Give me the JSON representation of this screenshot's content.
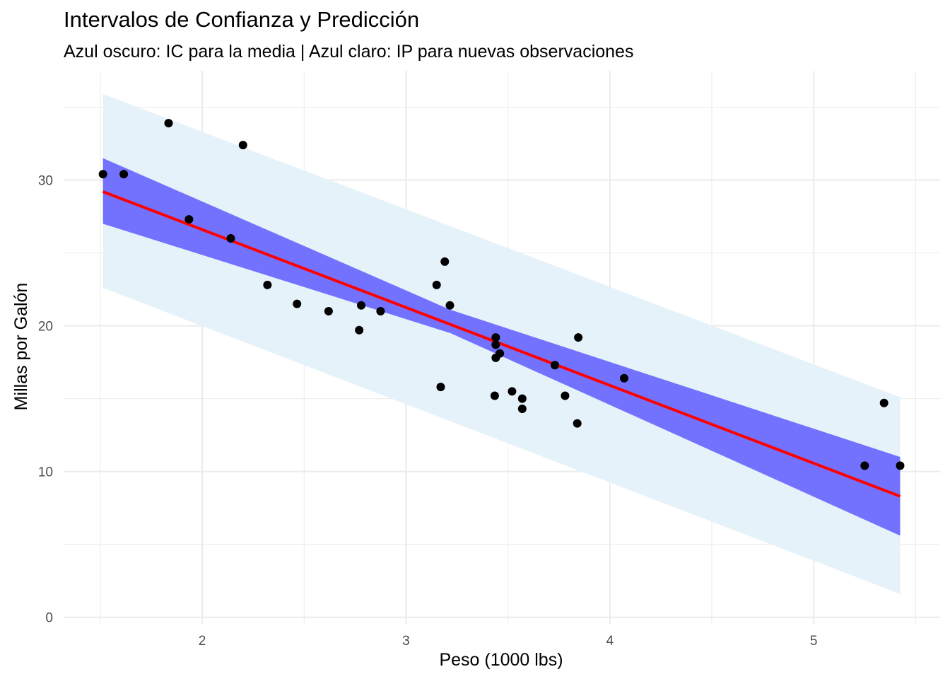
{
  "chart_data": {
    "type": "scatter",
    "title": "Intervalos de Confianza y Predicción",
    "subtitle": "Azul oscuro: IC para la media | Azul claro: IP para nuevas observaciones",
    "xlabel": "Peso (1000 lbs)",
    "ylabel": "Millas por Galón",
    "xlim": [
      1.32,
      5.62
    ],
    "ylim": [
      -0.5,
      37.5
    ],
    "x_ticks": [
      2,
      3,
      4,
      5
    ],
    "y_ticks": [
      0,
      10,
      20,
      30
    ],
    "x_tick_labels": [
      "2",
      "3",
      "4",
      "5"
    ],
    "y_tick_labels": [
      "0",
      "10",
      "20",
      "30"
    ],
    "grid": true,
    "legend": "none",
    "colors": {
      "points": "#000000",
      "fit_line": "#ff0000",
      "confidence_band": "#7272ff",
      "prediction_band": "#e6f2f9",
      "grid": "#ebebeb"
    },
    "fit_line": {
      "x": [
        1.513,
        5.424
      ],
      "y": [
        29.2,
        8.3
      ]
    },
    "confidence_band": {
      "x": [
        1.513,
        3.217,
        5.424
      ],
      "lower": [
        27.0,
        19.5,
        5.6
      ],
      "upper": [
        31.5,
        21.1,
        11.0
      ]
    },
    "prediction_band": {
      "x": [
        1.513,
        5.424
      ],
      "lower": [
        22.6,
        1.6
      ],
      "upper": [
        35.9,
        15.1
      ]
    },
    "points": {
      "x": [
        2.62,
        2.875,
        2.32,
        3.215,
        3.44,
        3.46,
        3.57,
        3.19,
        3.15,
        3.44,
        3.44,
        4.07,
        3.73,
        3.78,
        5.25,
        5.424,
        5.345,
        2.2,
        1.615,
        1.835,
        2.465,
        3.52,
        3.435,
        3.84,
        3.845,
        1.935,
        2.14,
        1.513,
        3.17,
        2.77,
        3.57,
        2.78
      ],
      "y": [
        21.0,
        21.0,
        22.8,
        21.4,
        18.7,
        18.1,
        14.3,
        24.4,
        22.8,
        19.2,
        17.8,
        16.4,
        17.3,
        15.2,
        10.4,
        10.4,
        14.7,
        32.4,
        30.4,
        33.9,
        21.5,
        15.5,
        15.2,
        13.3,
        19.2,
        27.3,
        26.0,
        30.4,
        15.8,
        19.7,
        15.0,
        21.4
      ]
    }
  }
}
